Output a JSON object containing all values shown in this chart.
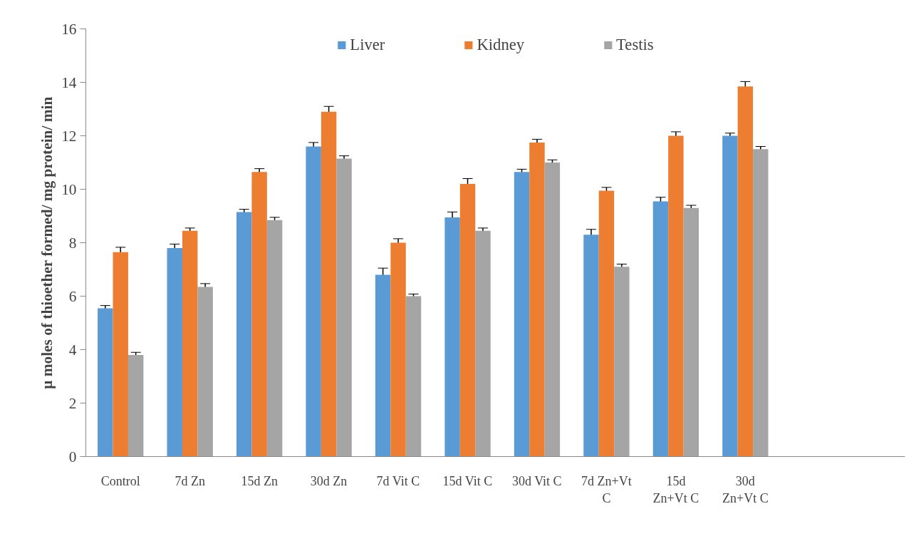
{
  "chart_data": {
    "type": "bar",
    "ylabel": "μ moles of thioether formed/ mg protein/ min",
    "categories": [
      "Control",
      "7d Zn",
      "15d Zn",
      "30d Zn",
      "7d Vit C",
      "15d Vit C",
      "30d Vit C",
      "7d Zn+Vt\nC",
      "15d\nZn+Vt C",
      "30d\nZn+Vt C"
    ],
    "series": [
      {
        "name": "Liver",
        "color": "#5b9bd5",
        "values": [
          5.55,
          7.8,
          9.15,
          11.6,
          6.8,
          8.95,
          10.65,
          8.3,
          9.55,
          12.0
        ],
        "errors": [
          0.1,
          0.15,
          0.1,
          0.15,
          0.25,
          0.2,
          0.1,
          0.2,
          0.15,
          0.1
        ]
      },
      {
        "name": "Kidney",
        "color": "#ed7d31",
        "values": [
          7.65,
          8.45,
          10.65,
          12.9,
          8.0,
          10.2,
          11.75,
          9.95,
          12.0,
          13.85
        ],
        "errors": [
          0.18,
          0.1,
          0.12,
          0.2,
          0.15,
          0.2,
          0.12,
          0.12,
          0.15,
          0.18
        ]
      },
      {
        "name": "Testis",
        "color": "#a5a5a5",
        "values": [
          3.8,
          6.35,
          8.85,
          11.15,
          6.0,
          8.45,
          11.0,
          7.1,
          9.3,
          11.5
        ],
        "errors": [
          0.1,
          0.12,
          0.1,
          0.1,
          0.08,
          0.1,
          0.1,
          0.1,
          0.1,
          0.1
        ]
      }
    ],
    "ylim": [
      0,
      16
    ],
    "yticks": [
      0,
      2,
      4,
      6,
      8,
      10,
      12,
      14,
      16
    ],
    "grid": false,
    "legend": "top"
  }
}
